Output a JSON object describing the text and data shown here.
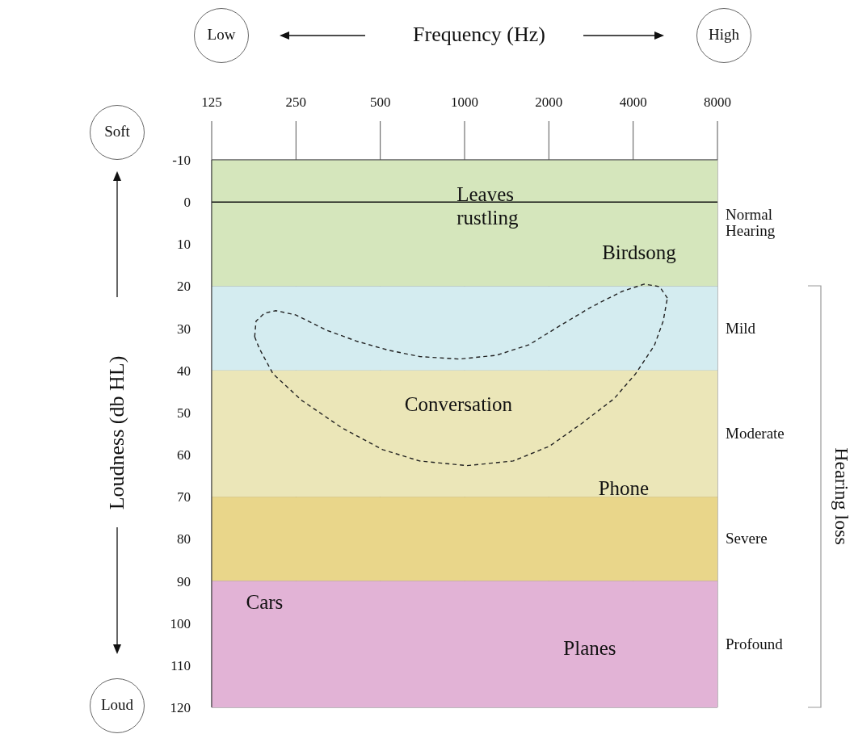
{
  "chart_data": {
    "type": "line",
    "title": "Frequency (Hz)",
    "ylabel": "Loudness (db HL)",
    "annotations": [
      "Low",
      "High",
      "Soft",
      "Loud",
      "Hearing loss",
      "Leaves rustling",
      "Birdsong",
      "Conversation",
      "Phone",
      "Cars",
      "Planes"
    ],
    "series": [
      {
        "color": "#222222",
        "x": [
          178,
          180,
          193,
          212,
          249,
          320,
          414,
          535,
          691,
          958,
          1300,
          1700,
          2200,
          2840,
          3660,
          4380,
          4970,
          5300
        ],
        "values": [
          32,
          28.3,
          26.4,
          25.8,
          26.8,
          30.4,
          33.1,
          35.2,
          36.7,
          37.3,
          36.4,
          33.9,
          29.3,
          24.9,
          21.2,
          19.5,
          20.1,
          22.8
        ]
      },
      {
        "color": "#222222",
        "x": [
          178,
          185,
          207,
          262,
          364,
          510,
          691,
          1020,
          1490,
          2010,
          2620,
          3420,
          4080,
          4760,
          5120,
          5300
        ],
        "values": [
          32,
          34.8,
          40.8,
          47.1,
          53.6,
          58.8,
          61.5,
          62.6,
          61.5,
          58,
          52.6,
          46.7,
          40.8,
          34.1,
          28.3,
          22.8
        ]
      }
    ],
    "line_style": "dashed",
    "marker": "none",
    "log": "x",
    "xlim": [
      125,
      8000
    ],
    "xticks": [
      125,
      250,
      500,
      1000,
      2000,
      4000,
      8000
    ],
    "ylim": [
      120,
      -10
    ],
    "yticks": [
      -10,
      0,
      10,
      20,
      30,
      40,
      50,
      60,
      70,
      80,
      90,
      100,
      110,
      120
    ],
    "grid": true,
    "ref_lines": [
      {
        "axis": "y",
        "value": 0,
        "color": "#111111"
      }
    ],
    "bands": [
      {
        "axis": "y",
        "from": -10,
        "to": 20,
        "label": "Normal Hearing",
        "color": "#d5e6bc"
      },
      {
        "axis": "y",
        "from": 20,
        "to": 40,
        "label": "Mild",
        "color": "#d4ecf0"
      },
      {
        "axis": "y",
        "from": 40,
        "to": 70,
        "label": "Moderate",
        "color": "#ebe6b8"
      },
      {
        "axis": "y",
        "from": 70,
        "to": 90,
        "label": "Severe",
        "color": "#e9d68a"
      },
      {
        "axis": "y",
        "from": 90,
        "to": 120,
        "label": "Profound",
        "color": "#e2b3d6"
      }
    ]
  }
}
